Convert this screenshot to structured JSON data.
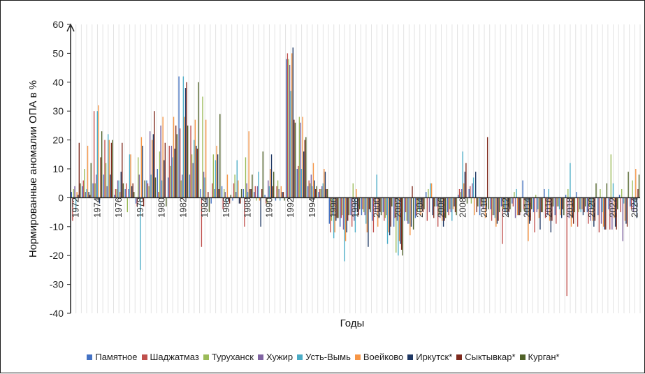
{
  "chart_data": {
    "type": "bar",
    "title": "",
    "xlabel": "Годы",
    "ylabel": "Нормированные аномалии ОПА в %",
    "ylim": [
      -40,
      60
    ],
    "y_ticks": [
      -40,
      -30,
      -20,
      -10,
      0,
      10,
      20,
      30,
      40,
      50,
      60
    ],
    "grid": "vertical minor lines",
    "legend_position": "bottom",
    "x_tick_labels": [
      "1972",
      "1974",
      "1976",
      "1978",
      "1980",
      "1982",
      "1984",
      "1986",
      "1988",
      "1990",
      "1992",
      "1994",
      "1996",
      "1998",
      "2000",
      "2002",
      "2004",
      "2006",
      "2008",
      "2010",
      "2012",
      "2014",
      "2016",
      "2018",
      "2020",
      "2022",
      "2024"
    ],
    "categories": [
      "1972",
      "1973",
      "1974",
      "1975",
      "1976",
      "1977",
      "1978",
      "1979",
      "1980",
      "1981",
      "1982",
      "1983",
      "1984",
      "1985",
      "1986",
      "1987",
      "1988",
      "1989",
      "1990",
      "1991",
      "1992",
      "1993",
      "1994",
      "1995",
      "1996",
      "1997",
      "1998",
      "1999",
      "2000",
      "2001",
      "2002",
      "2003",
      "2004",
      "2005",
      "2006",
      "2007",
      "2008",
      "2009",
      "2010",
      "2011",
      "2012",
      "2013",
      "2014",
      "2015",
      "2016",
      "2017",
      "2018",
      "2019",
      "2020",
      "2021",
      "2022",
      "2023",
      "2024"
    ],
    "series": [
      {
        "name": "Памятное",
        "color": "#4472C4",
        "values": [
          2,
          4,
          5,
          8,
          1,
          3,
          -2,
          6,
          10,
          7,
          42,
          8,
          3,
          -2,
          4,
          -1,
          3,
          2,
          1,
          -1,
          48,
          10,
          4,
          2,
          -9,
          -10,
          -6,
          -6,
          -8,
          -5,
          -10,
          -8,
          -7,
          2,
          -3,
          -5,
          1,
          3,
          -6,
          -4,
          -3,
          -2,
          6,
          -5,
          3,
          -6,
          1,
          2,
          -5,
          -6,
          -4,
          1,
          -3
        ]
      },
      {
        "name": "Шаджатмаз",
        "color": "#C0504D",
        "values": [
          -8,
          6,
          30,
          20,
          3,
          5,
          -3,
          5,
          2,
          18,
          24,
          25,
          -17,
          5,
          -4,
          5,
          -10,
          4,
          -2,
          4,
          50,
          11,
          6,
          3,
          -12,
          -7,
          -10,
          -4,
          -12,
          -8,
          -7,
          -5,
          -6,
          -8,
          -10,
          -6,
          3,
          4,
          -3,
          -8,
          -16,
          -3,
          -4,
          -12,
          -7,
          -9,
          -34,
          -10,
          -9,
          -12,
          -11,
          -5,
          -4
        ]
      },
      {
        "name": "Туруханск",
        "color": "#9BBB59",
        "values": [
          3,
          10,
          5,
          12,
          3,
          -5,
          14,
          4,
          16,
          11,
          6,
          15,
          35,
          15,
          3,
          8,
          14,
          -1,
          -2,
          6,
          48,
          28,
          5,
          3,
          -8,
          -6,
          5,
          -5,
          -2,
          -7,
          -19,
          -8,
          -5,
          3,
          -6,
          -4,
          2,
          -2,
          -3,
          -6,
          -4,
          2,
          -5,
          1,
          -4,
          -3,
          3,
          -5,
          -3,
          3,
          15,
          3,
          6
        ]
      },
      {
        "name": "Хужир",
        "color": "#8064A2",
        "values": [
          4,
          2,
          8,
          4,
          6,
          3,
          8,
          23,
          25,
          18,
          8,
          12,
          9,
          3,
          2,
          2,
          5,
          4,
          6,
          3,
          46,
          26,
          8,
          4,
          -6,
          -11,
          -8,
          -6,
          -5,
          -6,
          -8,
          -9,
          -4,
          -5,
          -7,
          -5,
          3,
          5,
          -4,
          -6,
          -5,
          -7,
          -6,
          -5,
          -6,
          -3,
          -7,
          -4,
          -8,
          -9,
          -11,
          -15,
          -5
        ]
      },
      {
        "name": "Усть-Вымь",
        "color": "#4BACC6",
        "values": [
          -5,
          3,
          30,
          22,
          6,
          15,
          -25,
          8,
          6,
          14,
          42,
          20,
          7,
          13,
          -2,
          13,
          2,
          9,
          4,
          -1,
          37,
          10,
          4,
          5,
          -14,
          -22,
          -12,
          -9,
          8,
          -16,
          -20,
          -9,
          -5,
          5,
          -6,
          -8,
          16,
          7,
          -3,
          -7,
          -5,
          3,
          -6,
          -4,
          3,
          -4,
          12,
          -5,
          -4,
          -5,
          5,
          -2,
          -3
        ]
      },
      {
        "name": "Воейково",
        "color": "#F79646",
        "values": [
          2,
          18,
          32,
          20,
          2,
          15,
          21,
          20,
          28,
          28,
          28,
          27,
          27,
          18,
          8,
          6,
          23,
          -1,
          10,
          4,
          50,
          28,
          12,
          10,
          -12,
          -15,
          3,
          -12,
          -10,
          -12,
          -15,
          -13,
          -6,
          5,
          -8,
          -4,
          5,
          -6,
          -7,
          -10,
          -5,
          -6,
          -15,
          -7,
          -8,
          -6,
          -10,
          -4,
          -8,
          -10,
          -7,
          -8,
          10
        ]
      },
      {
        "name": "Иркутск*",
        "color": "#1F3864",
        "values": [
          1,
          2,
          -2,
          8,
          9,
          4,
          18,
          22,
          13,
          17,
          38,
          18,
          -3,
          15,
          -1,
          -2,
          3,
          -10,
          15,
          2,
          52,
          16,
          6,
          9,
          -8,
          -12,
          -5,
          -17,
          -7,
          -13,
          -16,
          -10,
          -4,
          -6,
          -10,
          -3,
          9,
          9,
          -4,
          -9,
          -6,
          -6,
          -9,
          -11,
          -12,
          -7,
          -7,
          -6,
          -10,
          -11,
          -10,
          -9,
          -7
        ]
      },
      {
        "name": "Сыктывкар*",
        "color": "#7F2A1E",
        "values": [
          19,
          1,
          14,
          19,
          19,
          5,
          -3,
          30,
          19,
          25,
          40,
          17,
          2,
          3,
          -2,
          -2,
          3,
          3,
          4,
          2,
          27,
          20,
          3,
          3,
          -7,
          -8,
          -6,
          -4,
          -5,
          -10,
          -18,
          4,
          -5,
          -7,
          -8,
          -5,
          12,
          -5,
          21,
          -8,
          -5,
          -6,
          -8,
          -5,
          -8,
          -4,
          -9,
          -5,
          -8,
          -11,
          -11,
          -10,
          3
        ]
      },
      {
        "name": "Курган*",
        "color": "#4F6228",
        "values": [
          5,
          12,
          23,
          20,
          5,
          2,
          6,
          7,
          -3,
          22,
          25,
          40,
          -5,
          29,
          1,
          3,
          8,
          16,
          9,
          -1,
          26,
          21,
          4,
          3,
          -7,
          -6,
          -4,
          -5,
          -6,
          -3,
          -20,
          -11,
          -4,
          -3,
          -7,
          -6,
          -2,
          -3,
          -4,
          -5,
          -4,
          -5,
          -4,
          -5,
          -3,
          -6,
          -5,
          -3,
          5,
          5,
          -4,
          9,
          8
        ]
      }
    ]
  }
}
